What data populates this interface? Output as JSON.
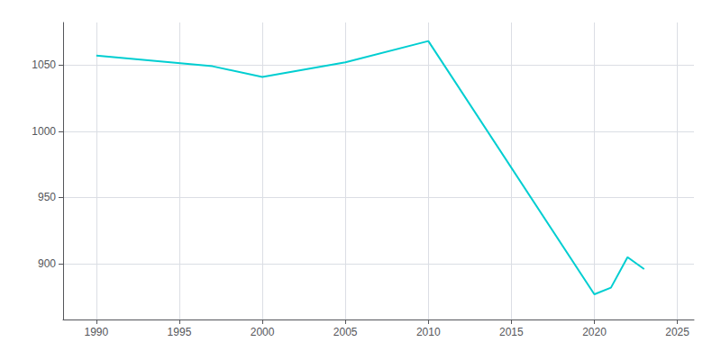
{
  "chart_data": {
    "type": "line",
    "x": [
      1990,
      1997,
      2000,
      2005,
      2010,
      2020,
      2021,
      2022,
      2023
    ],
    "values": [
      1057,
      1049,
      1041,
      1052,
      1068,
      877,
      882,
      905,
      896
    ],
    "color": "#00CED1",
    "xlim": [
      1988,
      2026
    ],
    "xticks": [
      1990,
      1995,
      2000,
      2005,
      2010,
      2015,
      2020,
      2025
    ],
    "ylim": [
      858,
      1082
    ],
    "yticks": [
      900,
      950,
      1000,
      1050
    ],
    "grid": true
  }
}
